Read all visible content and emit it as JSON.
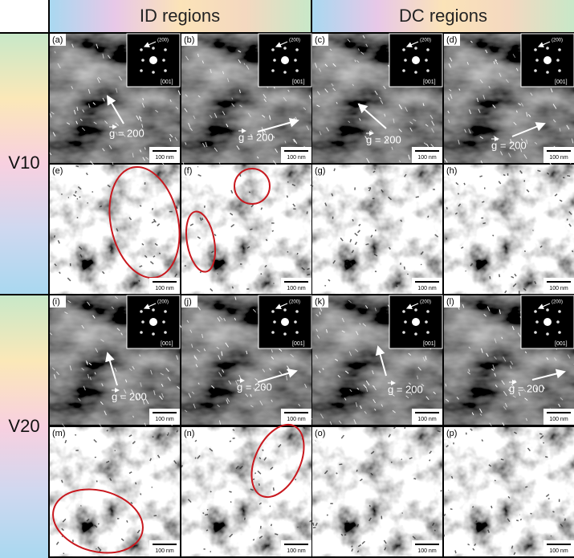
{
  "headers": [
    "ID regions",
    "DC regions"
  ],
  "rows": [
    "V10",
    "V20"
  ],
  "panels": [
    {
      "label": "(a)",
      "scale": "100 nm",
      "g": "g = 200",
      "inset": {
        "spot": "(200)",
        "zone": "[001]"
      }
    },
    {
      "label": "(b)",
      "scale": "100 nm",
      "g": "g = 200",
      "inset": {
        "spot": "(200)",
        "zone": "[001]"
      }
    },
    {
      "label": "(c)",
      "scale": "100 nm",
      "g": "g = 200",
      "inset": {
        "spot": "(200)",
        "zone": "[001]"
      }
    },
    {
      "label": "(d)",
      "scale": "100 nm",
      "g": "g = 200",
      "inset": {
        "spot": "(200)",
        "zone": "[001]"
      }
    },
    {
      "label": "(e)",
      "scale": "100 nm"
    },
    {
      "label": "(f)",
      "scale": "100 nm"
    },
    {
      "label": "(g)",
      "scale": "100 nm"
    },
    {
      "label": "(h)",
      "scale": "100 nm"
    },
    {
      "label": "(i)",
      "scale": "100 nm",
      "g": "g = 200",
      "inset": {
        "spot": "(200)",
        "zone": "[001]"
      }
    },
    {
      "label": "(j)",
      "scale": "100 nm",
      "g": "g = 200",
      "inset": {
        "spot": "(200)",
        "zone": "[001]"
      }
    },
    {
      "label": "(k)",
      "scale": "100 nm",
      "g": "g = 200",
      "inset": {
        "spot": "(200)",
        "zone": "[001]"
      }
    },
    {
      "label": "(l)",
      "scale": "100 nm",
      "g": "g = 200",
      "inset": {
        "spot": "(200)",
        "zone": "[001]"
      }
    },
    {
      "label": "(m)",
      "scale": "100 nm"
    },
    {
      "label": "(n)",
      "scale": "100 nm"
    },
    {
      "label": "(o)",
      "scale": "100 nm"
    },
    {
      "label": "(p)",
      "scale": "100 nm"
    }
  ]
}
